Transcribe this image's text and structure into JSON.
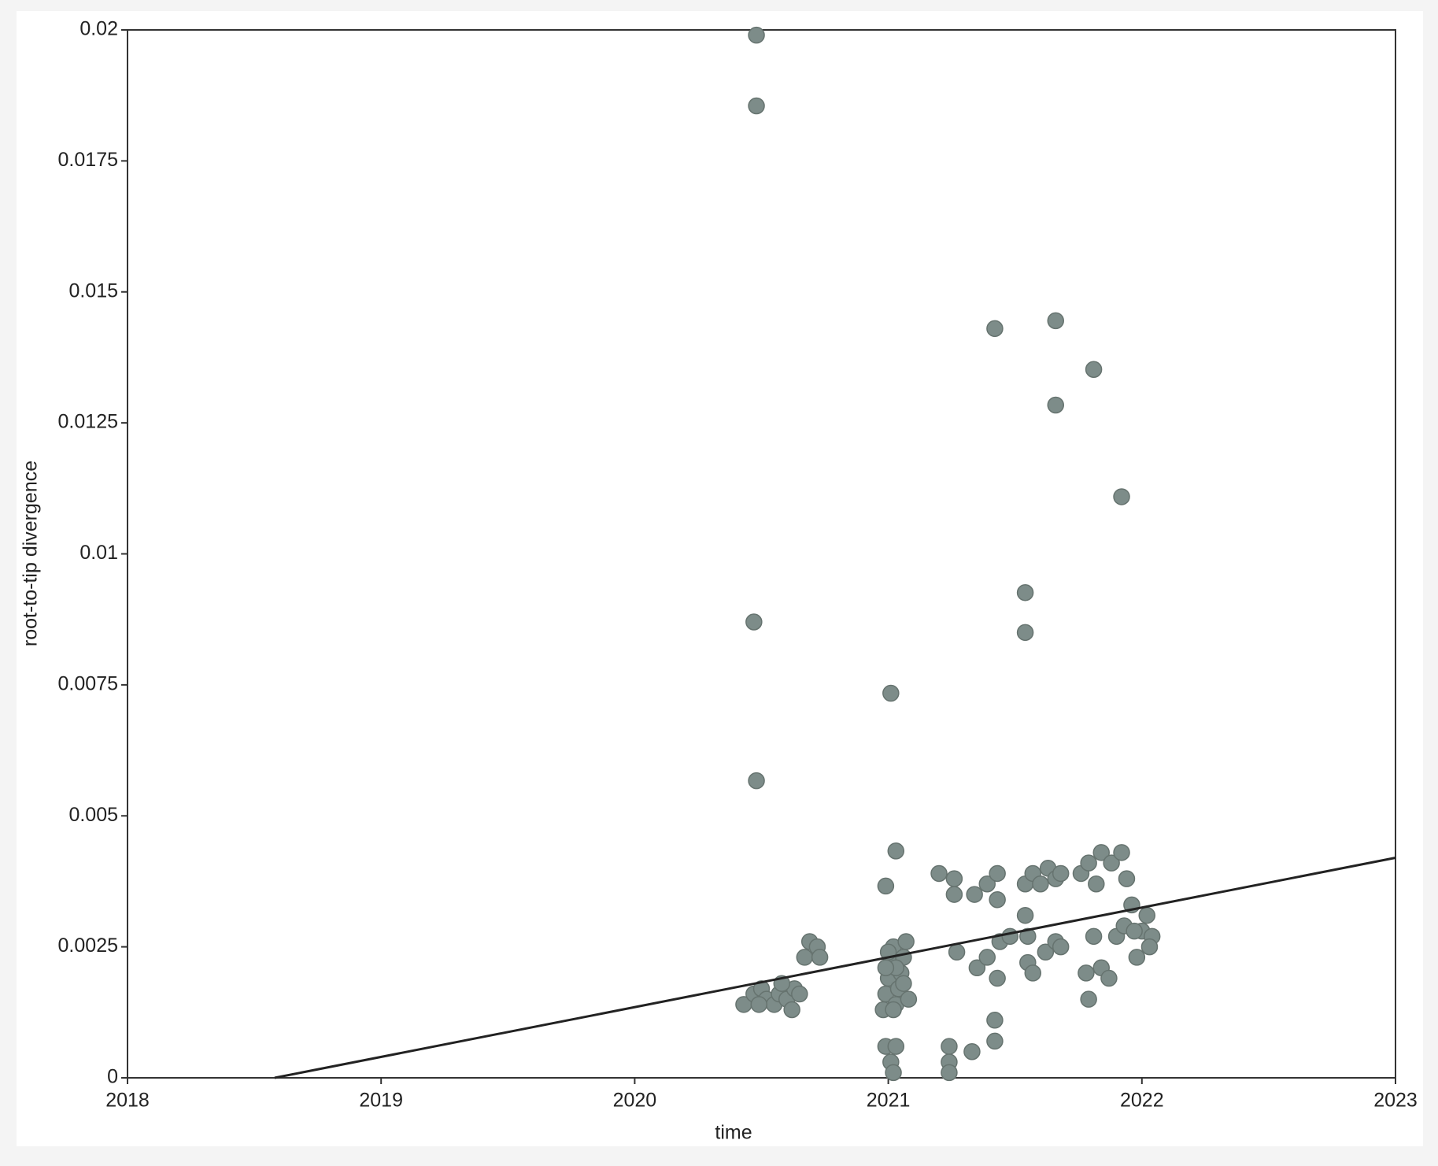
{
  "chart_data": {
    "type": "scatter",
    "x_label": "time",
    "y_label": "root-to-tip divergence",
    "xlim": [
      2018,
      2023
    ],
    "ylim": [
      0,
      0.02
    ],
    "xticks": [
      2018,
      2019,
      2020,
      2021,
      2022,
      2023
    ],
    "yticks": [
      0,
      0.0025,
      0.005,
      0.0075,
      0.01,
      0.0125,
      0.015,
      0.0175,
      0.02
    ],
    "grid": false,
    "series": [
      {
        "color": "#7d8c89",
        "x": [
          2020.48,
          2020.48,
          2020.47,
          2020.48,
          2021.01,
          2021.42,
          2021.66,
          2021.81,
          2021.66,
          2021.92,
          2021.54,
          2021.54,
          2021.03,
          2020.99,
          2020.43,
          2020.47,
          2020.5,
          2020.52,
          2020.55,
          2020.57,
          2020.6,
          2020.62,
          2020.63,
          2020.65,
          2020.67,
          2020.69,
          2020.72,
          2020.73,
          2020.49,
          2020.58,
          2020.98,
          2020.99,
          2021.0,
          2021.01,
          2021.02,
          2021.03,
          2021.04,
          2021.05,
          2021.06,
          2021.07,
          2021.08,
          2021.0,
          2021.03,
          2021.06,
          2020.99,
          2021.02,
          2020.99,
          2021.01,
          2021.03,
          2021.02,
          2021.24,
          2021.24,
          2021.24,
          2021.33,
          2021.42,
          2021.42,
          2021.79,
          2021.2,
          2021.26,
          2021.26,
          2021.34,
          2021.39,
          2021.43,
          2021.43,
          2021.27,
          2021.35,
          2021.39,
          2021.43,
          2021.44,
          2021.48,
          2021.54,
          2021.57,
          2021.6,
          2021.63,
          2021.66,
          2021.68,
          2021.54,
          2021.55,
          2021.55,
          2021.57,
          2021.62,
          2021.66,
          2021.68,
          2021.76,
          2021.79,
          2021.82,
          2021.84,
          2021.88,
          2021.92,
          2021.94,
          2021.78,
          2021.81,
          2021.84,
          2021.87,
          2021.9,
          2021.93,
          2021.96,
          2022.0,
          2022.02,
          2022.04,
          2021.98,
          2022.03,
          2021.97
        ],
        "values": [
          0.0199,
          0.01855,
          0.0087,
          0.00567,
          0.00734,
          0.0143,
          0.01445,
          0.01352,
          0.01284,
          0.01109,
          0.00926,
          0.0085,
          0.00433,
          0.00366,
          0.0014,
          0.0016,
          0.0017,
          0.0015,
          0.0014,
          0.0016,
          0.0015,
          0.0013,
          0.0017,
          0.0016,
          0.0023,
          0.0026,
          0.0025,
          0.0023,
          0.0014,
          0.0018,
          0.0013,
          0.0016,
          0.0019,
          0.0022,
          0.0025,
          0.0014,
          0.0017,
          0.002,
          0.0023,
          0.0026,
          0.0015,
          0.0024,
          0.0021,
          0.0018,
          0.0021,
          0.0013,
          0.0006,
          0.0003,
          0.0006,
          0.0001,
          0.0006,
          0.0003,
          0.0001,
          0.0005,
          0.0011,
          0.0007,
          0.0015,
          0.0039,
          0.0038,
          0.0035,
          0.0035,
          0.0037,
          0.0039,
          0.0034,
          0.0024,
          0.0021,
          0.0023,
          0.0019,
          0.0026,
          0.0027,
          0.0037,
          0.0039,
          0.0037,
          0.004,
          0.0038,
          0.0039,
          0.0031,
          0.0027,
          0.0022,
          0.002,
          0.0024,
          0.0026,
          0.0025,
          0.0039,
          0.0041,
          0.0037,
          0.0043,
          0.0041,
          0.0043,
          0.0038,
          0.002,
          0.0027,
          0.0021,
          0.0019,
          0.0027,
          0.0029,
          0.0033,
          0.0028,
          0.0031,
          0.0027,
          0.0023,
          0.0025,
          0.0028
        ]
      },
      {
        "color": "#222222",
        "line": true,
        "x": [
          2018.58,
          2023
        ],
        "values": [
          0,
          0.0042
        ]
      }
    ]
  }
}
